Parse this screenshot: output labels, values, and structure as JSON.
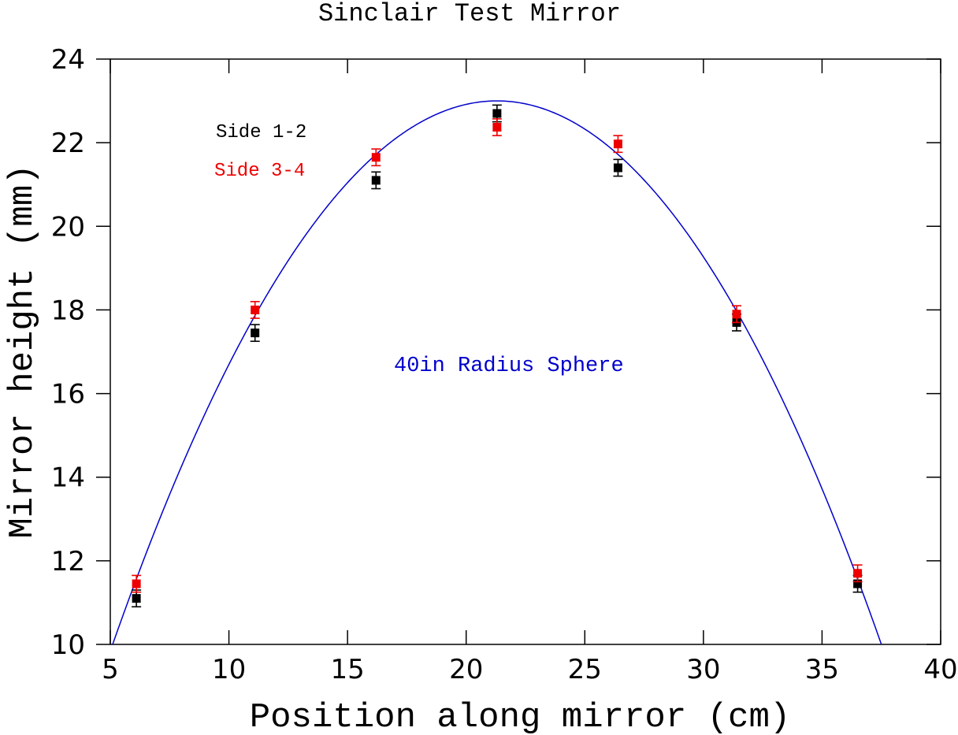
{
  "chart_data": {
    "type": "scatter",
    "title": "Sinclair Test Mirror",
    "xlabel": "Position along mirror (cm)",
    "ylabel": "Mirror height (mm)",
    "xlim": [
      5,
      40
    ],
    "ylim": [
      10,
      24
    ],
    "x_ticks": [
      5,
      10,
      15,
      20,
      25,
      30,
      35,
      40
    ],
    "y_ticks": [
      10,
      12,
      14,
      16,
      18,
      20,
      22,
      24
    ],
    "grid": false,
    "series": [
      {
        "name": "Side 1-2",
        "color": "#000000",
        "marker": "square",
        "x": [
          6.1,
          11.1,
          16.2,
          21.3,
          26.4,
          31.4,
          36.5
        ],
        "y": [
          11.1,
          17.45,
          21.1,
          22.7,
          21.4,
          17.7,
          11.45
        ],
        "yerr": [
          0.2,
          0.2,
          0.2,
          0.2,
          0.2,
          0.2,
          0.2
        ]
      },
      {
        "name": "Side 3-4",
        "color": "#ee0000",
        "marker": "square",
        "x": [
          6.1,
          11.1,
          16.2,
          21.3,
          26.4,
          31.4,
          36.5
        ],
        "y": [
          11.45,
          18.0,
          21.65,
          22.37,
          21.97,
          17.9,
          11.7
        ],
        "yerr": [
          0.2,
          0.2,
          0.2,
          0.2,
          0.2,
          0.2,
          0.2
        ]
      }
    ],
    "fit_curve": {
      "label": "40in Radius Sphere",
      "color": "#0000cc",
      "vertex_x": 21.3,
      "vertex_y": 23.0,
      "radius_in": 40
    },
    "legend": {
      "placement": "top-left",
      "entries": [
        {
          "label": "Side 1-2",
          "color": "#000000"
        },
        {
          "label": "Side 3-4",
          "color": "#ee0000"
        }
      ]
    }
  }
}
